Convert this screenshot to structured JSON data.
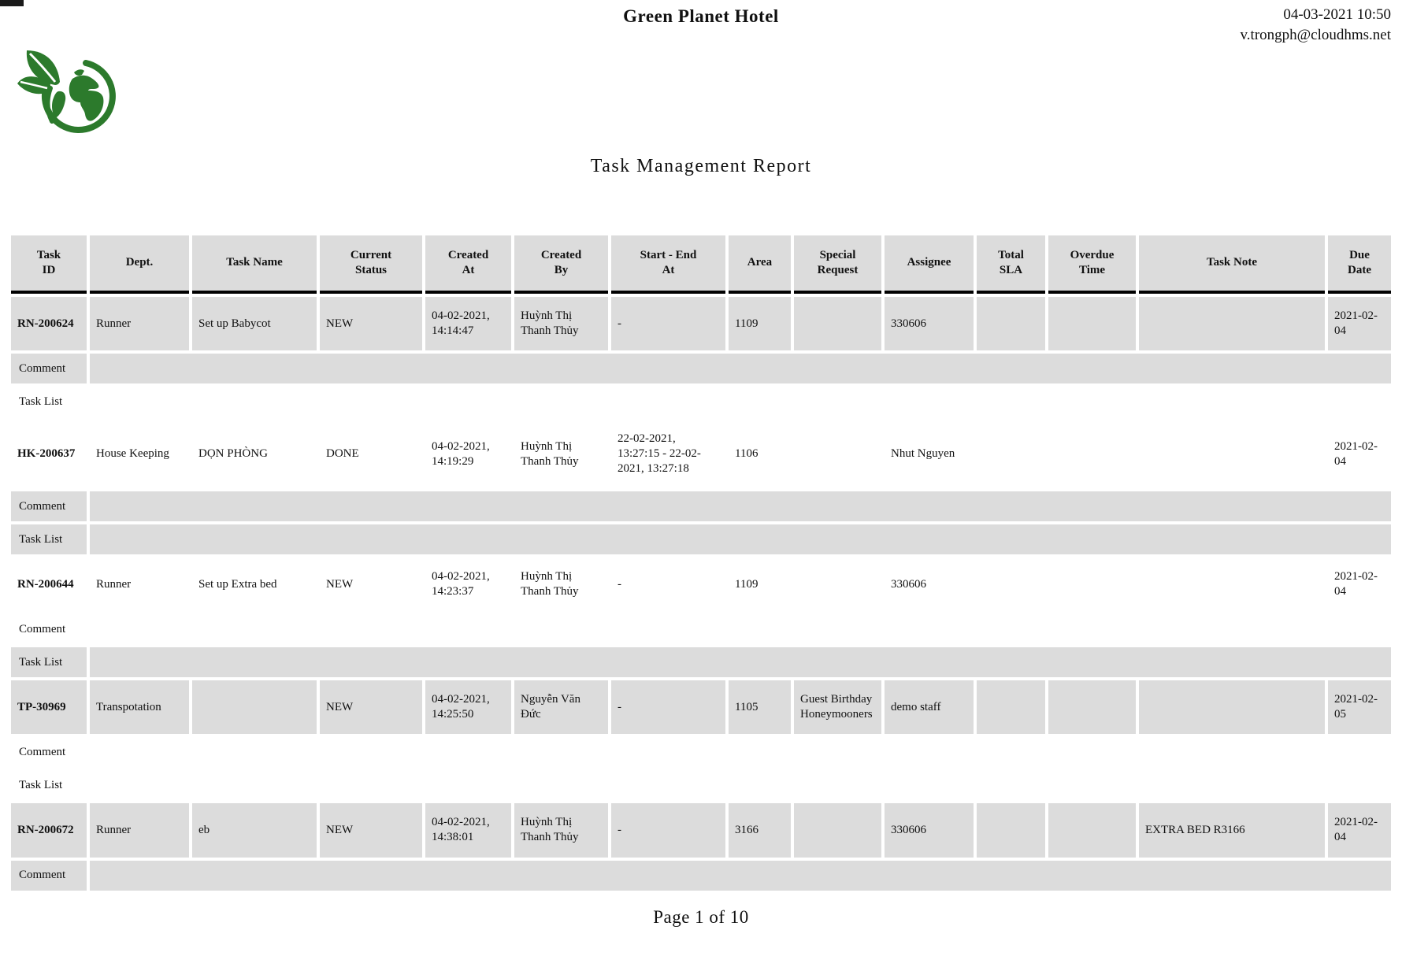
{
  "header": {
    "hotel_name": "Green Planet Hotel",
    "printed_at": "04-03-2021 10:50",
    "printed_by": "v.trongph@cloudhms.net",
    "logo_icon": "green-planet-leaf-logo"
  },
  "title": "Task Management Report",
  "footer": {
    "page_indicator": "Page 1 of 10"
  },
  "colors": {
    "row_shade": "#dcdcdc",
    "logo_green": "#2c7a2c",
    "header_underline": "#000000"
  },
  "table": {
    "columns": [
      "Task\nID",
      "Dept.",
      "Task Name",
      "Current\nStatus",
      "Created\nAt",
      "Created\nBy",
      "Start - End\nAt",
      "Area",
      "Special\nRequest",
      "Assignee",
      "Total\nSLA",
      "Overdue\nTime",
      "Task Note",
      "Due\nDate"
    ],
    "field_order": [
      "task_id",
      "dept",
      "task_name",
      "current_status",
      "created_at",
      "created_by",
      "start_end_at",
      "area",
      "special_request",
      "assignee",
      "total_sla",
      "overdue_time",
      "task_note",
      "due_date"
    ],
    "comment_label": "Comment",
    "task_list_label": "Task List",
    "tasks": [
      {
        "task_id": "RN-200624",
        "dept": "Runner",
        "task_name": "Set up Babycot",
        "current_status": "NEW",
        "created_at": "04-02-2021, 14:14:47",
        "created_by": "Huỳnh Thị Thanh Thủy",
        "start_end_at": "-",
        "area": "1109",
        "special_request": "",
        "assignee": "330606",
        "total_sla": "",
        "overdue_time": "",
        "task_note": "",
        "due_date": "2021-02-04",
        "comment": "",
        "task_list": ""
      },
      {
        "task_id": "HK-200637",
        "dept": "House Keeping",
        "task_name": "DỌN PHÒNG",
        "current_status": "DONE",
        "created_at": "04-02-2021, 14:19:29",
        "created_by": "Huỳnh Thị Thanh Thủy",
        "start_end_at": "22-02-2021, 13:27:15 - 22-02-2021, 13:27:18",
        "area": "1106",
        "special_request": "",
        "assignee": "Nhut Nguyen",
        "total_sla": "",
        "overdue_time": "",
        "task_note": "",
        "due_date": "2021-02-04",
        "comment": "",
        "task_list": ""
      },
      {
        "task_id": "RN-200644",
        "dept": "Runner",
        "task_name": "Set up Extra bed",
        "current_status": "NEW",
        "created_at": "04-02-2021, 14:23:37",
        "created_by": "Huỳnh Thị Thanh Thủy",
        "start_end_at": "-",
        "area": "1109",
        "special_request": "",
        "assignee": "330606",
        "total_sla": "",
        "overdue_time": "",
        "task_note": "",
        "due_date": "2021-02-04",
        "comment": "",
        "task_list": ""
      },
      {
        "task_id": "TP-30969",
        "dept": "Transpotation",
        "task_name": "",
        "current_status": "NEW",
        "created_at": "04-02-2021, 14:25:50",
        "created_by": "Nguyễn Văn Đức",
        "start_end_at": "-",
        "area": "1105",
        "special_request": "Guest Birthday Honeymooners",
        "assignee": "demo staff",
        "total_sla": "",
        "overdue_time": "",
        "task_note": "",
        "due_date": "2021-02-05",
        "comment": "",
        "task_list": ""
      },
      {
        "task_id": "RN-200672",
        "dept": "Runner",
        "task_name": "eb",
        "current_status": "NEW",
        "created_at": "04-02-2021, 14:38:01",
        "created_by": "Huỳnh Thị Thanh Thủy",
        "start_end_at": "-",
        "area": "3166",
        "special_request": "",
        "assignee": "330606",
        "total_sla": "",
        "overdue_time": "",
        "task_note": "EXTRA BED R3166",
        "due_date": "2021-02-04",
        "comment": "",
        "task_list": ""
      }
    ]
  }
}
